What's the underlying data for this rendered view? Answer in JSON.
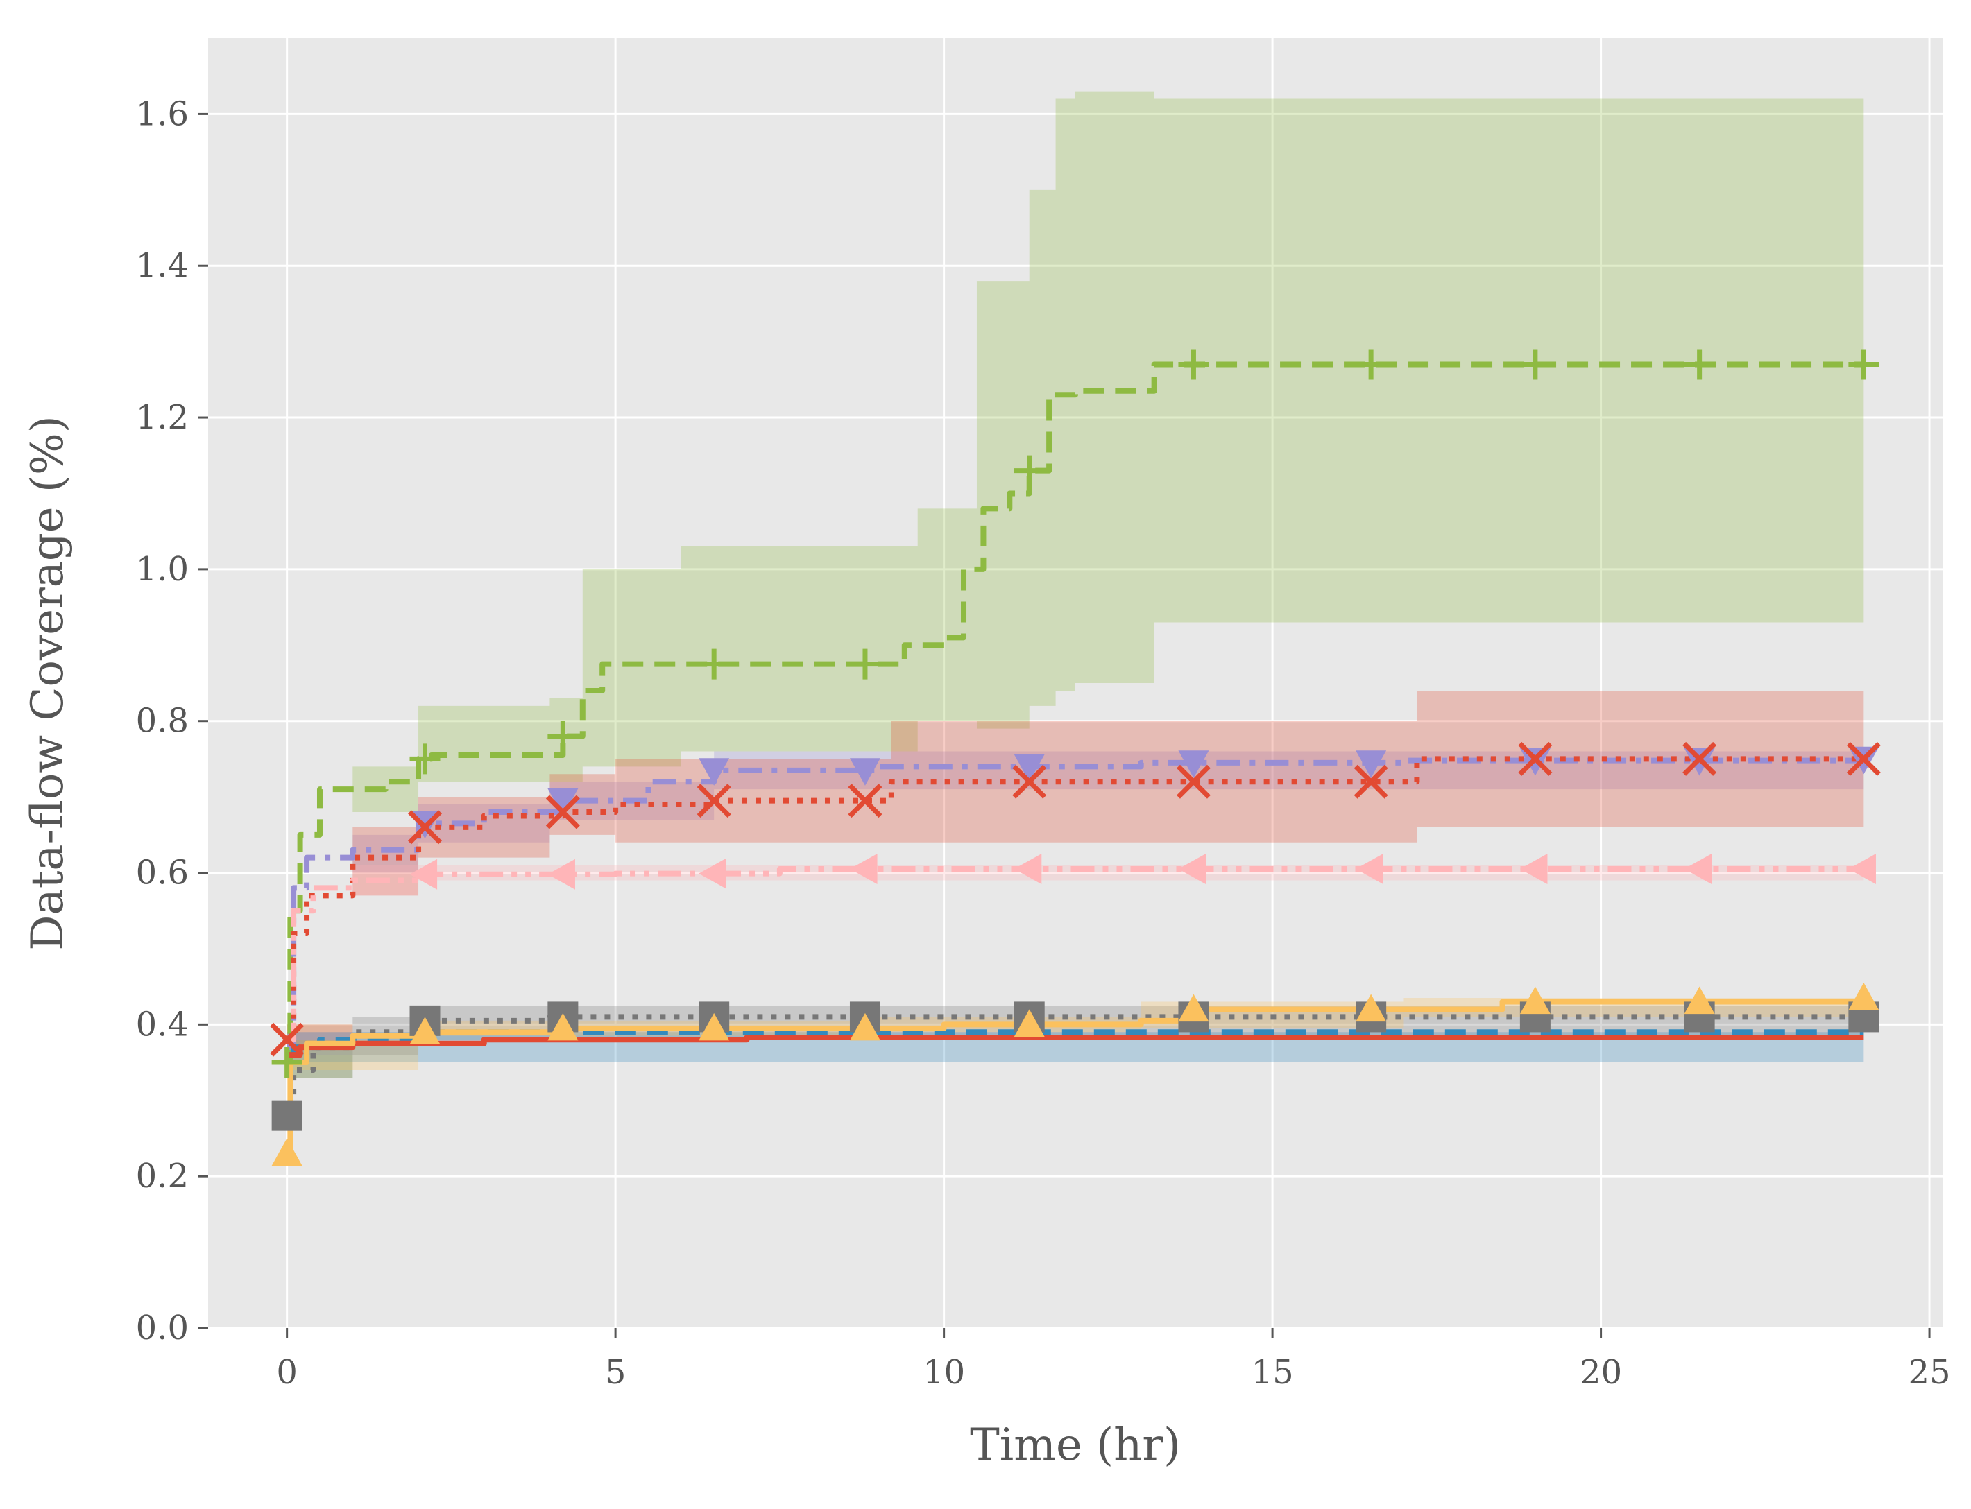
{
  "chart_data": {
    "type": "line",
    "title": "",
    "xlabel": "Time (hr)",
    "ylabel": "Data-flow Coverage (%)",
    "xlim": [
      -1.2,
      25.2
    ],
    "ylim": [
      0.0,
      1.7
    ],
    "xticks": [
      0,
      5,
      10,
      15,
      20,
      25
    ],
    "yticks": [
      0.0,
      0.2,
      0.4,
      0.6,
      0.8,
      1.0,
      1.2,
      1.4,
      1.6
    ],
    "xtick_labels": [
      "0",
      "5",
      "10",
      "15",
      "20",
      "25"
    ],
    "ytick_labels": [
      "0.0",
      "0.2",
      "0.4",
      "0.6",
      "0.8",
      "1.0",
      "1.2",
      "1.4",
      "1.6"
    ],
    "grid": true,
    "background": "#e8e8e8",
    "series": [
      {
        "color": "#8eba42",
        "dash": "dashed",
        "marker": "plus",
        "x": [
          0,
          0.05,
          0.2,
          0.5,
          0.8,
          1.5,
          2.0,
          2.2,
          3.8,
          4.2,
          4.5,
          4.8,
          6.0,
          7.5,
          9.0,
          9.4,
          10.0,
          10.3,
          10.6,
          11.0,
          11.3,
          11.6,
          12.0,
          13.2,
          14.0,
          24.0
        ],
        "y": [
          0.35,
          0.55,
          0.65,
          0.71,
          0.71,
          0.72,
          0.75,
          0.755,
          0.755,
          0.78,
          0.84,
          0.875,
          0.875,
          0.875,
          0.875,
          0.9,
          0.91,
          1.0,
          1.08,
          1.1,
          1.13,
          1.23,
          1.235,
          1.27,
          1.27,
          1.27
        ],
        "marker_x": [
          0,
          2.1,
          4.2,
          6.5,
          8.8,
          11.3,
          13.8,
          16.5,
          19.0,
          21.5,
          24.0
        ],
        "band_x": [
          0,
          1.0,
          2.0,
          4.0,
          4.5,
          6.0,
          9.6,
          10.5,
          11.3,
          11.7,
          12.0,
          13.2,
          24.0
        ],
        "band_low": [
          0.33,
          0.68,
          0.72,
          0.72,
          0.74,
          0.76,
          0.8,
          0.79,
          0.82,
          0.84,
          0.85,
          0.93,
          0.93
        ],
        "band_high": [
          0.4,
          0.74,
          0.82,
          0.83,
          1.0,
          1.03,
          1.08,
          1.38,
          1.5,
          1.62,
          1.63,
          1.62,
          1.62
        ]
      },
      {
        "color": "#988ed5",
        "dash": "dashdot",
        "marker": "triangle-down",
        "x": [
          0,
          0.1,
          0.3,
          1.0,
          2.0,
          3.0,
          4.2,
          5.5,
          6.5,
          9.0,
          13.0,
          17.0,
          24.0
        ],
        "y": [
          0.37,
          0.58,
          0.62,
          0.63,
          0.665,
          0.68,
          0.695,
          0.72,
          0.735,
          0.74,
          0.745,
          0.748,
          0.75
        ],
        "marker_x": [
          2.1,
          4.2,
          6.5,
          8.8,
          11.3,
          13.8,
          16.5,
          19.0,
          21.5,
          24.0
        ],
        "band_x": [
          0,
          1.0,
          2.0,
          4.0,
          6.5,
          24.0
        ],
        "band_low": [
          0.36,
          0.6,
          0.64,
          0.67,
          0.71,
          0.73
        ],
        "band_high": [
          0.39,
          0.65,
          0.69,
          0.72,
          0.76,
          0.77
        ]
      },
      {
        "color": "#e24a33",
        "dash": "dotted",
        "marker": "x",
        "x": [
          0,
          0.1,
          0.3,
          1.0,
          2.0,
          3.0,
          4.2,
          5.0,
          6.5,
          9.0,
          9.2,
          13.0,
          17.0,
          17.2,
          24.0
        ],
        "y": [
          0.38,
          0.52,
          0.57,
          0.62,
          0.66,
          0.675,
          0.68,
          0.69,
          0.695,
          0.695,
          0.72,
          0.72,
          0.72,
          0.75,
          0.75
        ],
        "marker_x": [
          0,
          2.1,
          4.2,
          6.5,
          8.8,
          11.3,
          13.8,
          16.5,
          19.0,
          21.5,
          24.0
        ],
        "band_x": [
          0,
          1.0,
          2.0,
          4.0,
          5.0,
          9.2,
          17.2,
          24.0
        ],
        "band_low": [
          0.37,
          0.57,
          0.62,
          0.65,
          0.64,
          0.64,
          0.66,
          0.66
        ],
        "band_high": [
          0.4,
          0.66,
          0.7,
          0.73,
          0.75,
          0.8,
          0.84,
          0.84
        ]
      },
      {
        "color": "#ffb5b8",
        "dash": "dashdotdot",
        "marker": "triangle-left",
        "x": [
          0,
          0.1,
          0.4,
          1.0,
          2.1,
          5.0,
          7.5,
          24.0
        ],
        "y": [
          0.38,
          0.55,
          0.58,
          0.59,
          0.598,
          0.599,
          0.605,
          0.605
        ],
        "marker_x": [
          2.1,
          4.2,
          6.5,
          8.8,
          11.3,
          13.8,
          16.5,
          19.0,
          21.5,
          24.0
        ],
        "band_x": [
          0,
          1.0,
          2.0,
          24.0
        ],
        "band_low": [
          0.37,
          0.57,
          0.59,
          0.595
        ],
        "band_high": [
          0.4,
          0.61,
          0.61,
          0.615
        ]
      },
      {
        "color": "#777777",
        "dash": "dotted",
        "marker": "square",
        "x": [
          0,
          0.1,
          0.4,
          1.0,
          2.0,
          4.0,
          24.0
        ],
        "y": [
          0.28,
          0.34,
          0.37,
          0.39,
          0.405,
          0.41,
          0.41
        ],
        "marker_x": [
          0,
          2.1,
          4.2,
          6.5,
          8.8,
          11.3,
          13.8,
          16.5,
          19.0,
          21.5,
          24.0
        ],
        "band_x": [
          0,
          1.0,
          2.0,
          24.0
        ],
        "band_low": [
          0.33,
          0.36,
          0.38,
          0.385
        ],
        "band_high": [
          0.38,
          0.41,
          0.425,
          0.43
        ]
      },
      {
        "color": "#348abd",
        "dash": "dashed",
        "marker": "circle",
        "x": [
          0,
          0.1,
          0.5,
          2.0,
          24.0
        ],
        "y": [
          0.36,
          0.37,
          0.38,
          0.39,
          0.39
        ],
        "marker_x": [],
        "band_x": [
          0,
          24.0
        ],
        "band_low": [
          0.35,
          0.38
        ],
        "band_high": [
          0.39,
          0.4
        ]
      },
      {
        "color": "#e24a33",
        "dash": "solid",
        "marker": "none",
        "x": [
          0,
          0.2,
          1.0,
          3.0,
          7.0,
          24.0
        ],
        "y": [
          0.36,
          0.37,
          0.375,
          0.38,
          0.383,
          0.383
        ],
        "marker_x": [],
        "band_x": [],
        "band_low": [],
        "band_high": []
      },
      {
        "color": "#fbc15e",
        "dash": "solid",
        "marker": "triangle-up",
        "x": [
          0,
          0.05,
          0.3,
          1.0,
          2.1,
          4.2,
          9.0,
          10.0,
          13.0,
          13.8,
          17.0,
          18.5,
          24.0
        ],
        "y": [
          0.23,
          0.35,
          0.375,
          0.385,
          0.39,
          0.395,
          0.395,
          0.4,
          0.405,
          0.42,
          0.42,
          0.43,
          0.435
        ],
        "marker_x": [
          0,
          2.1,
          4.2,
          6.5,
          8.8,
          11.3,
          13.8,
          16.5,
          19.0,
          21.5,
          24.0
        ],
        "band_x": [
          0,
          2.0,
          9.0,
          13.0,
          17.0,
          24.0
        ],
        "band_low": [
          0.34,
          0.385,
          0.39,
          0.395,
          0.41,
          0.42
        ],
        "band_high": [
          0.38,
          0.405,
          0.41,
          0.43,
          0.435,
          0.445
        ]
      }
    ]
  }
}
